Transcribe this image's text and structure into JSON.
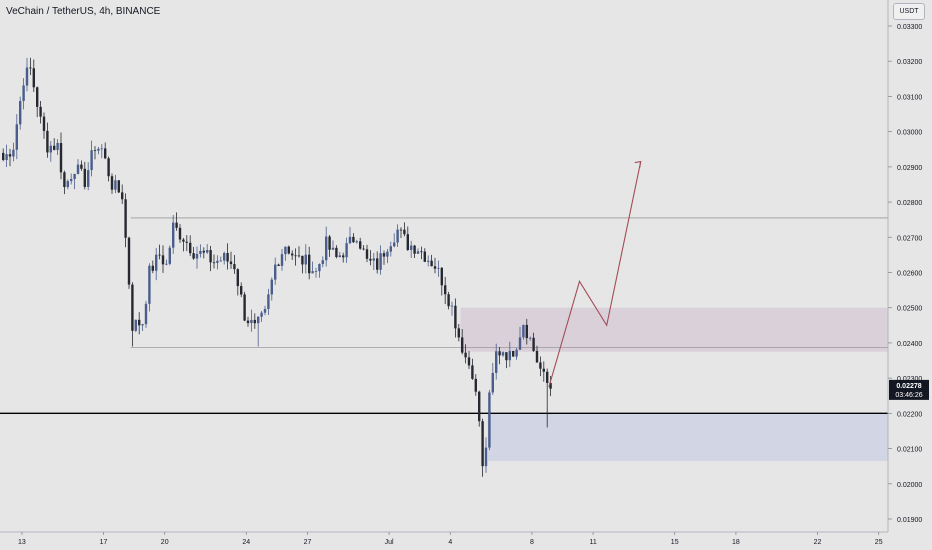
{
  "header": {
    "symbol_title": "VeChain / TetherUS, 4h, BINANCE",
    "currency_unit": "USDT"
  },
  "price_tag": {
    "price": "0.02278",
    "countdown": "03:46:26"
  },
  "colors": {
    "background": "#e6e6e6",
    "bull_candle": "#4a5d8c",
    "bear_candle": "#26292f",
    "resistance_zone": "#d8cdd8",
    "support_zone": "#cfd3e2",
    "projection": "#a24d55",
    "level_line": "#9a9a9a",
    "key_level": "#000000"
  },
  "chart_data": {
    "type": "candlestick",
    "timeframe": "4h",
    "exchange": "BINANCE",
    "y_axis": {
      "min": 0.019,
      "max": 0.0334,
      "ticks": [
        "0.03300",
        "0.03200",
        "0.03100",
        "0.03000",
        "0.02900",
        "0.02800",
        "0.02700",
        "0.02600",
        "0.02500",
        "0.02400",
        "0.02300",
        "0.02200",
        "0.02100",
        "0.02000",
        "0.01900"
      ],
      "tick_values": [
        0.033,
        0.032,
        0.031,
        0.03,
        0.029,
        0.028,
        0.027,
        0.026,
        0.025,
        0.024,
        0.023,
        0.022,
        0.021,
        0.02,
        0.019
      ]
    },
    "x_axis": {
      "labels": [
        "13",
        "17",
        "20",
        "24",
        "27",
        "Jul",
        "4",
        "8",
        "11",
        "15",
        "18",
        "22",
        "25"
      ],
      "label_bar_index": [
        6,
        30,
        48,
        72,
        90,
        114,
        132,
        156,
        174,
        198,
        216,
        240,
        258
      ],
      "total_bars": 262
    },
    "anchor_points": [
      [
        0,
        0.0292
      ],
      [
        3,
        0.0296
      ],
      [
        6,
        0.0315
      ],
      [
        8,
        0.0318
      ],
      [
        11,
        0.0303
      ],
      [
        13,
        0.0296
      ],
      [
        16,
        0.0296
      ],
      [
        18,
        0.0284
      ],
      [
        21,
        0.029
      ],
      [
        24,
        0.0286
      ],
      [
        27,
        0.0296
      ],
      [
        29,
        0.0295
      ],
      [
        32,
        0.0285
      ],
      [
        35,
        0.0282
      ],
      [
        38,
        0.0245
      ],
      [
        41,
        0.0246
      ],
      [
        43,
        0.026
      ],
      [
        46,
        0.0265
      ],
      [
        48,
        0.0262
      ],
      [
        50,
        0.0273
      ],
      [
        53,
        0.027
      ],
      [
        56,
        0.0266
      ],
      [
        59,
        0.0265
      ],
      [
        62,
        0.0263
      ],
      [
        65,
        0.0264
      ],
      [
        68,
        0.0262
      ],
      [
        71,
        0.0248
      ],
      [
        74,
        0.0244
      ],
      [
        77,
        0.0248
      ],
      [
        80,
        0.0262
      ],
      [
        83,
        0.0268
      ],
      [
        86,
        0.0264
      ],
      [
        89,
        0.0263
      ],
      [
        92,
        0.026
      ],
      [
        95,
        0.0268
      ],
      [
        98,
        0.0264
      ],
      [
        101,
        0.0267
      ],
      [
        104,
        0.0271
      ],
      [
        107,
        0.0263
      ],
      [
        110,
        0.0262
      ],
      [
        113,
        0.0268
      ],
      [
        116,
        0.0272
      ],
      [
        119,
        0.0268
      ],
      [
        122,
        0.0267
      ],
      [
        125,
        0.0264
      ],
      [
        127,
        0.0262
      ],
      [
        129,
        0.0258
      ],
      [
        132,
        0.025
      ],
      [
        134,
        0.0242
      ],
      [
        136,
        0.0236
      ],
      [
        138,
        0.0232
      ],
      [
        140,
        0.0218
      ],
      [
        141,
        0.0204
      ],
      [
        142,
        0.0211
      ],
      [
        143,
        0.0224
      ],
      [
        145,
        0.0237
      ],
      [
        147,
        0.0238
      ],
      [
        149,
        0.0236
      ],
      [
        151,
        0.024
      ],
      [
        153,
        0.0246
      ],
      [
        155,
        0.0241
      ],
      [
        157,
        0.0235
      ],
      [
        159,
        0.023
      ],
      [
        161,
        0.0227
      ]
    ],
    "levels": {
      "upper_resistance": 0.02755,
      "lower_support_line": 0.02387,
      "key_level": 0.022,
      "last_price": 0.02278
    },
    "zones": [
      {
        "role": "resistance",
        "from_bar": 135,
        "y_top": 0.025,
        "y_bottom": 0.02375
      },
      {
        "role": "support",
        "from_bar": 143,
        "y_top": 0.022,
        "y_bottom": 0.02065
      }
    ],
    "projection_path": [
      [
        161,
        0.02275
      ],
      [
        170,
        0.02575
      ],
      [
        178,
        0.0245
      ],
      [
        188,
        0.02915
      ]
    ]
  }
}
